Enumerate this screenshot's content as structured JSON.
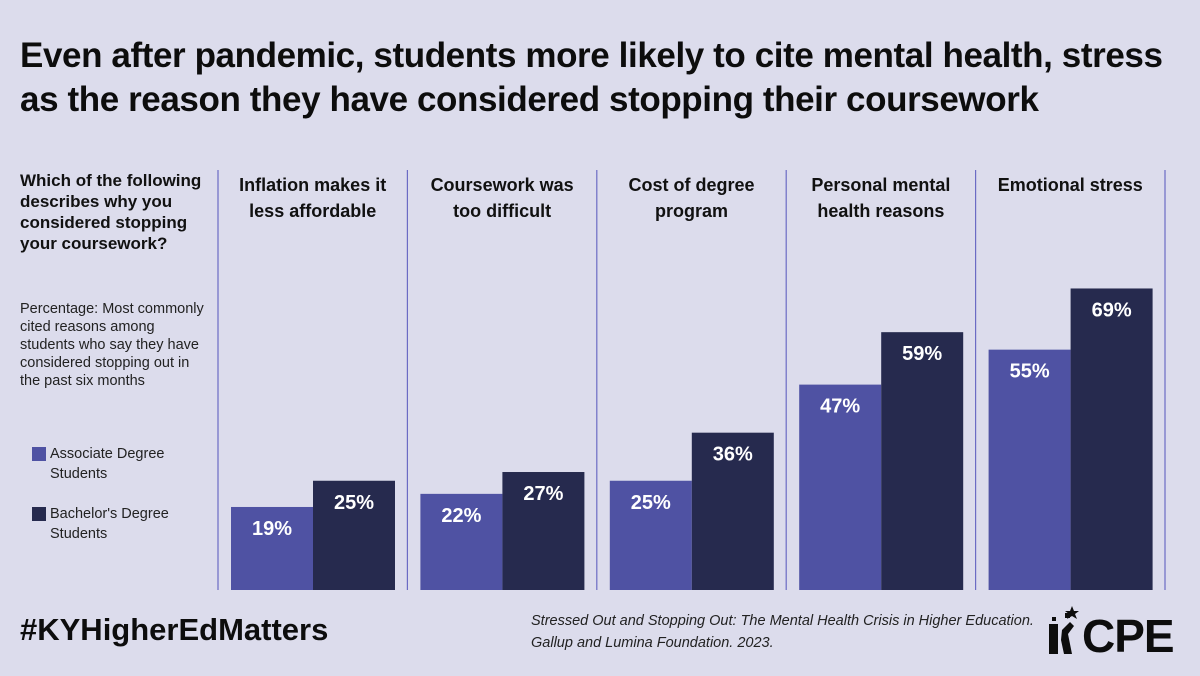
{
  "title": "Even after pandemic, students more likely to cite mental health, stress as the reason they have considered stopping their coursework",
  "question": "Which of the following describes why you considered stopping your coursework?",
  "subtitle": "Percentage: Most commonly cited reasons among students who say they have considered stopping out in the past six months",
  "hashtag": "#KYHigherEdMatters",
  "source": {
    "line1": "Stressed Out and Stopping Out: The Mental Health Crisis in Higher Education.",
    "line2": "Gallup and Lumina Foundation. 2023."
  },
  "logo": {
    "text": "CPE",
    "icon": "cpe-star-figure-icon"
  },
  "colors": {
    "background": "#dcdcec",
    "associate": "#4f52a3",
    "bachelor": "#262a4e",
    "divider": "#6b6bc4"
  },
  "chart_data": {
    "type": "bar",
    "categories": [
      [
        "Inflation makes it",
        "less affordable"
      ],
      [
        "Coursework was",
        "too difficult"
      ],
      [
        "Cost of degree",
        "program"
      ],
      [
        "Personal mental",
        "health reasons"
      ],
      [
        "Emotional stress"
      ]
    ],
    "series": [
      {
        "name": "Associate Degree Students",
        "values": [
          19,
          22,
          25,
          47,
          55
        ],
        "color": "#4f52a3"
      },
      {
        "name": "Bachelor's Degree Students",
        "values": [
          25,
          27,
          36,
          59,
          69
        ],
        "color": "#262a4e"
      }
    ],
    "value_suffix": "%",
    "ylim": [
      0,
      100
    ],
    "legend_position": "left",
    "grid": false
  }
}
